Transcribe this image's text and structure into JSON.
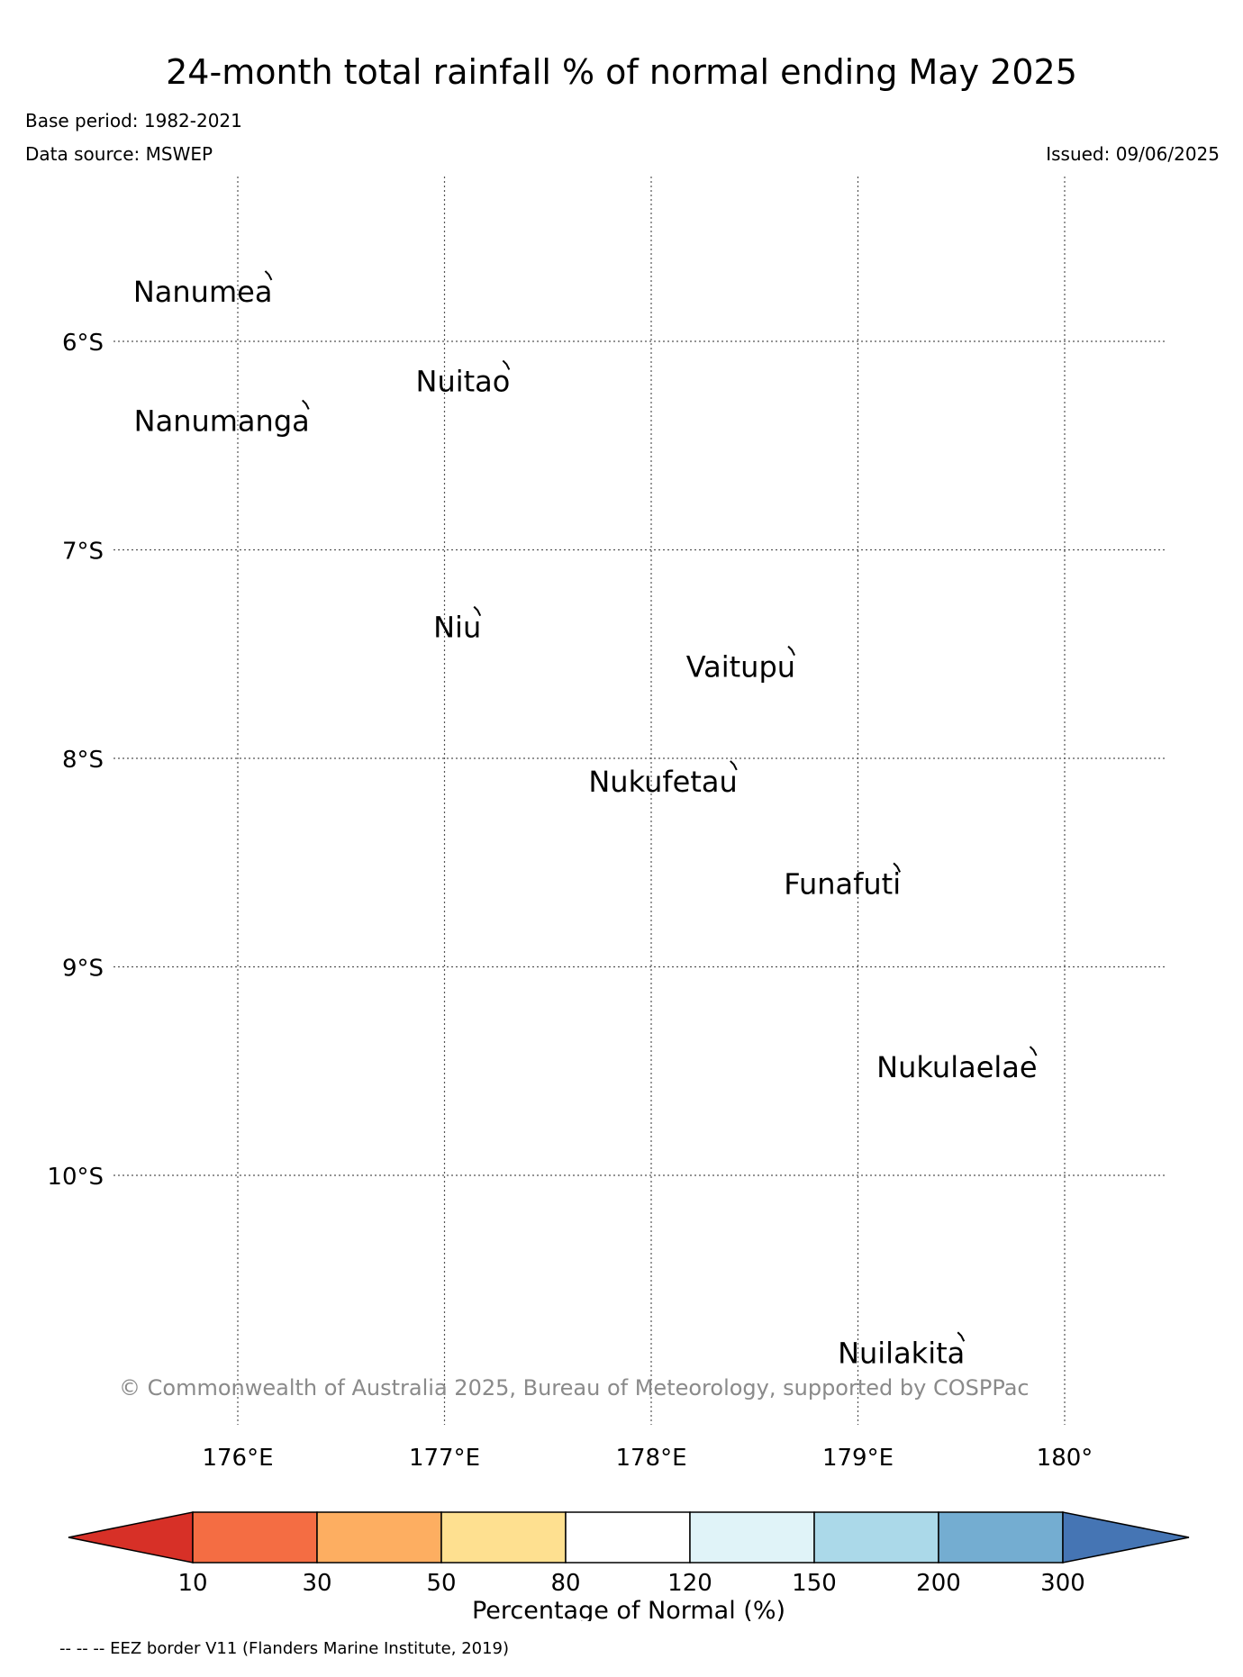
{
  "title": "24-month total rainfall % of normal ending May 2025",
  "base_period": "Base period: 1982-2021",
  "data_source": "Data source: MSWEP",
  "issued": "Issued: 09/06/2025",
  "map": {
    "lat_labels": [
      "6°S",
      "7°S",
      "8°S",
      "9°S",
      "10°S"
    ],
    "lon_labels": [
      "176°E",
      "177°E",
      "178°E",
      "179°E",
      "180°"
    ],
    "islands": [
      {
        "name": "Nanumea",
        "lon": 176.15,
        "lat": -5.68
      },
      {
        "name": "Nuitao",
        "lon": 177.3,
        "lat": -6.11
      },
      {
        "name": "Nanumanga",
        "lon": 176.33,
        "lat": -6.3
      },
      {
        "name": "Niu",
        "lon": 177.16,
        "lat": -7.29
      },
      {
        "name": "Vaitupu",
        "lon": 178.68,
        "lat": -7.48
      },
      {
        "name": "Nukufetau",
        "lon": 178.4,
        "lat": -8.03
      },
      {
        "name": "Funafuti",
        "lon": 179.19,
        "lat": -8.52
      },
      {
        "name": "Nukulaelae",
        "lon": 179.85,
        "lat": -9.4
      },
      {
        "name": "Nuilakita",
        "lon": 179.5,
        "lat": -10.77
      }
    ],
    "copyright": "© Commonwealth of Australia 2025, Bureau of Meteorology, supported by COSPPac"
  },
  "colorbar": {
    "title": "Percentage of Normal (%)",
    "ticks": [
      "10",
      "30",
      "50",
      "80",
      "120",
      "150",
      "200",
      "300"
    ],
    "colors": [
      "#d73027",
      "#f46d43",
      "#fdae61",
      "#fee090",
      "#ffffff",
      "#e0f3f8",
      "#abd9e9",
      "#74add1",
      "#4575b4"
    ]
  },
  "footer_note": "-- -- -- EEZ border V11 (Flanders Marine Institute, 2019)"
}
